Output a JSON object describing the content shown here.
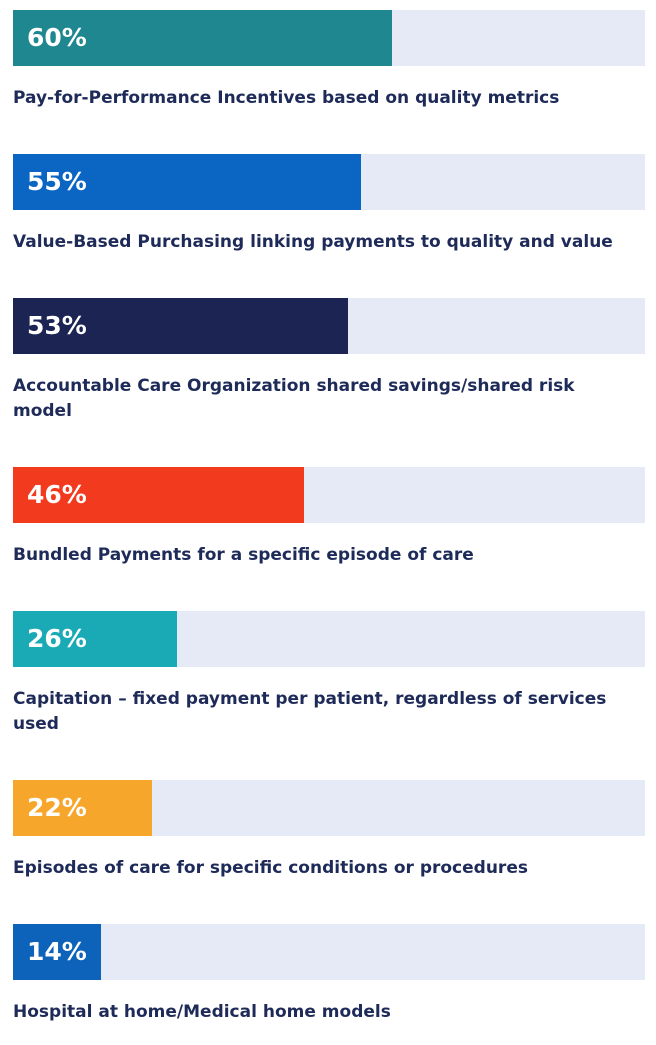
{
  "chart_data": {
    "type": "bar",
    "orientation": "horizontal",
    "categories": [
      "Pay-for-Performance Incentives based on quality metrics",
      "Value-Based Purchasing linking payments to quality and value",
      "Accountable Care Organization shared savings/shared risk model",
      "Bundled Payments for a specific episode of care",
      "Capitation – fixed payment per patient, regardless of services used",
      "Episodes of care for specific conditions or procedures",
      "Hospital at home/Medical home models"
    ],
    "values": [
      60,
      55,
      53,
      46,
      26,
      22,
      14
    ],
    "value_labels": [
      "60%",
      "55%",
      "53%",
      "46%",
      "26%",
      "22%",
      "14%"
    ],
    "colors": [
      "#1f8790",
      "#0b66c3",
      "#1b2452",
      "#f23b1e",
      "#19aab5",
      "#f6a72b",
      "#0c63b9"
    ],
    "track_color": "#e6e9f6",
    "xlim": [
      0,
      100
    ]
  }
}
